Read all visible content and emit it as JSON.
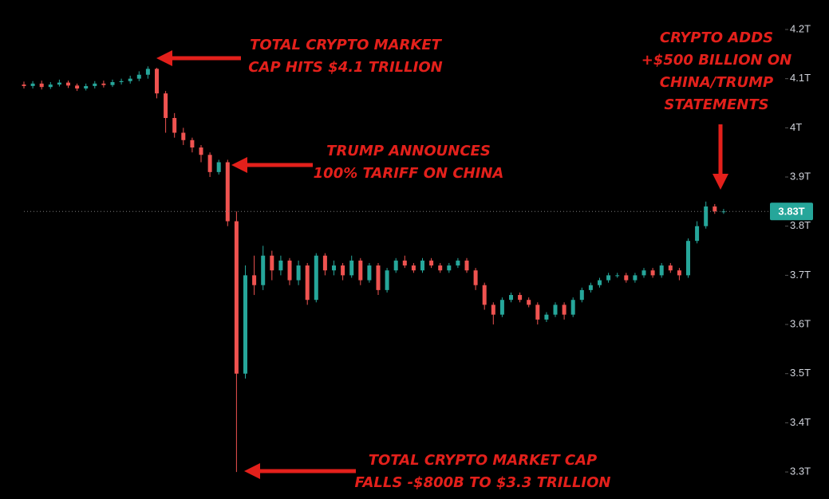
{
  "chart_data": {
    "type": "candlestick",
    "up_color": "#26a69a",
    "down_color": "#ef5350",
    "ylim": [
      3.245,
      4.26
    ],
    "yticks": [
      {
        "value": 3.3,
        "label": "3.3T"
      },
      {
        "value": 3.4,
        "label": "3.4T"
      },
      {
        "value": 3.5,
        "label": "3.5T"
      },
      {
        "value": 3.6,
        "label": "3.6T"
      },
      {
        "value": 3.7,
        "label": "3.7T"
      },
      {
        "value": 3.8,
        "label": "3.8T"
      },
      {
        "value": 3.9,
        "label": "3.9T"
      },
      {
        "value": 4,
        "label": "4T"
      },
      {
        "value": 4.1,
        "label": "4.1T"
      },
      {
        "value": 4.2,
        "label": "4.2T"
      }
    ],
    "last_price": {
      "value": 3.83,
      "label": "3.83T"
    },
    "open": [
      4.088,
      4.085,
      4.09,
      4.083,
      4.088,
      4.092,
      4.086,
      4.08,
      4.085,
      4.09,
      4.087,
      4.093,
      4.095,
      4.1,
      4.108,
      4.12,
      4.07,
      4.02,
      3.99,
      3.975,
      3.96,
      3.945,
      3.91,
      3.93,
      3.81,
      3.5,
      3.7,
      3.68,
      3.74,
      3.71,
      3.73,
      3.69,
      3.72,
      3.65,
      3.74,
      3.71,
      3.72,
      3.7,
      3.73,
      3.69,
      3.72,
      3.67,
      3.71,
      3.73,
      3.72,
      3.71,
      3.73,
      3.72,
      3.71,
      3.72,
      3.73,
      3.71,
      3.68,
      3.64,
      3.62,
      3.65,
      3.66,
      3.65,
      3.64,
      3.61,
      3.62,
      3.64,
      3.62,
      3.65,
      3.67,
      3.68,
      3.69,
      3.7,
      3.7,
      3.69,
      3.7,
      3.71,
      3.7,
      3.72,
      3.71,
      3.7,
      3.77,
      3.8,
      3.84,
      3.83
    ],
    "high": [
      4.094,
      4.095,
      4.096,
      4.093,
      4.098,
      4.096,
      4.09,
      4.09,
      4.095,
      4.096,
      4.098,
      4.1,
      4.106,
      4.115,
      4.125,
      4.122,
      4.075,
      4.03,
      4.0,
      3.98,
      3.965,
      3.95,
      3.935,
      3.935,
      3.83,
      3.72,
      3.74,
      3.76,
      3.75,
      3.74,
      3.735,
      3.73,
      3.725,
      3.745,
      3.745,
      3.73,
      3.725,
      3.74,
      3.735,
      3.725,
      3.725,
      3.715,
      3.735,
      3.74,
      3.725,
      3.735,
      3.735,
      3.725,
      3.725,
      3.735,
      3.735,
      3.715,
      3.685,
      3.645,
      3.655,
      3.665,
      3.665,
      3.655,
      3.645,
      3.625,
      3.645,
      3.645,
      3.655,
      3.675,
      3.685,
      3.695,
      3.705,
      3.705,
      3.705,
      3.705,
      3.715,
      3.715,
      3.725,
      3.725,
      3.715,
      3.775,
      3.81,
      3.85,
      3.845,
      3.835
    ],
    "low": [
      4.08,
      4.08,
      4.078,
      4.079,
      4.084,
      4.081,
      4.075,
      4.076,
      4.08,
      4.082,
      4.083,
      4.088,
      4.09,
      4.095,
      4.1,
      4.06,
      3.99,
      3.98,
      3.965,
      3.95,
      3.93,
      3.9,
      3.905,
      3.8,
      3.3,
      3.49,
      3.66,
      3.67,
      3.69,
      3.7,
      3.68,
      3.68,
      3.64,
      3.645,
      3.7,
      3.7,
      3.69,
      3.695,
      3.68,
      3.685,
      3.66,
      3.665,
      3.705,
      3.715,
      3.705,
      3.705,
      3.715,
      3.705,
      3.705,
      3.715,
      3.705,
      3.67,
      3.63,
      3.6,
      3.615,
      3.645,
      3.645,
      3.635,
      3.6,
      3.605,
      3.615,
      3.61,
      3.615,
      3.645,
      3.665,
      3.675,
      3.685,
      3.695,
      3.685,
      3.685,
      3.695,
      3.695,
      3.695,
      3.705,
      3.69,
      3.695,
      3.765,
      3.795,
      3.825,
      3.825
    ],
    "close": [
      4.085,
      4.09,
      4.083,
      4.088,
      4.092,
      4.086,
      4.08,
      4.085,
      4.09,
      4.087,
      4.093,
      4.095,
      4.1,
      4.108,
      4.12,
      4.07,
      4.02,
      3.99,
      3.975,
      3.96,
      3.945,
      3.91,
      3.93,
      3.81,
      3.5,
      3.7,
      3.68,
      3.74,
      3.71,
      3.73,
      3.69,
      3.72,
      3.65,
      3.74,
      3.71,
      3.72,
      3.7,
      3.73,
      3.69,
      3.72,
      3.67,
      3.71,
      3.73,
      3.72,
      3.71,
      3.73,
      3.72,
      3.71,
      3.72,
      3.73,
      3.71,
      3.68,
      3.64,
      3.62,
      3.65,
      3.66,
      3.65,
      3.64,
      3.61,
      3.62,
      3.64,
      3.62,
      3.65,
      3.67,
      3.68,
      3.69,
      3.7,
      3.7,
      3.69,
      3.7,
      3.71,
      3.7,
      3.72,
      3.71,
      3.7,
      3.77,
      3.8,
      3.84,
      3.83,
      3.83
    ],
    "annotations": [
      {
        "lines": [
          "TOTAL CRYPTO MARKET",
          "CAP HITS $4.1 TRILLION"
        ]
      },
      {
        "lines": [
          "TRUMP ANNOUNCES",
          "100% TARIFF ON CHINA"
        ]
      },
      {
        "lines": [
          "CRYPTO ADDS",
          "+$500 BILLION ON",
          "CHINA/TRUMP",
          "STATEMENTS"
        ]
      },
      {
        "lines": [
          "TOTAL CRYPTO MARKET CAP",
          "FALLS -$800B TO $3.3 TRILLION"
        ]
      }
    ]
  }
}
